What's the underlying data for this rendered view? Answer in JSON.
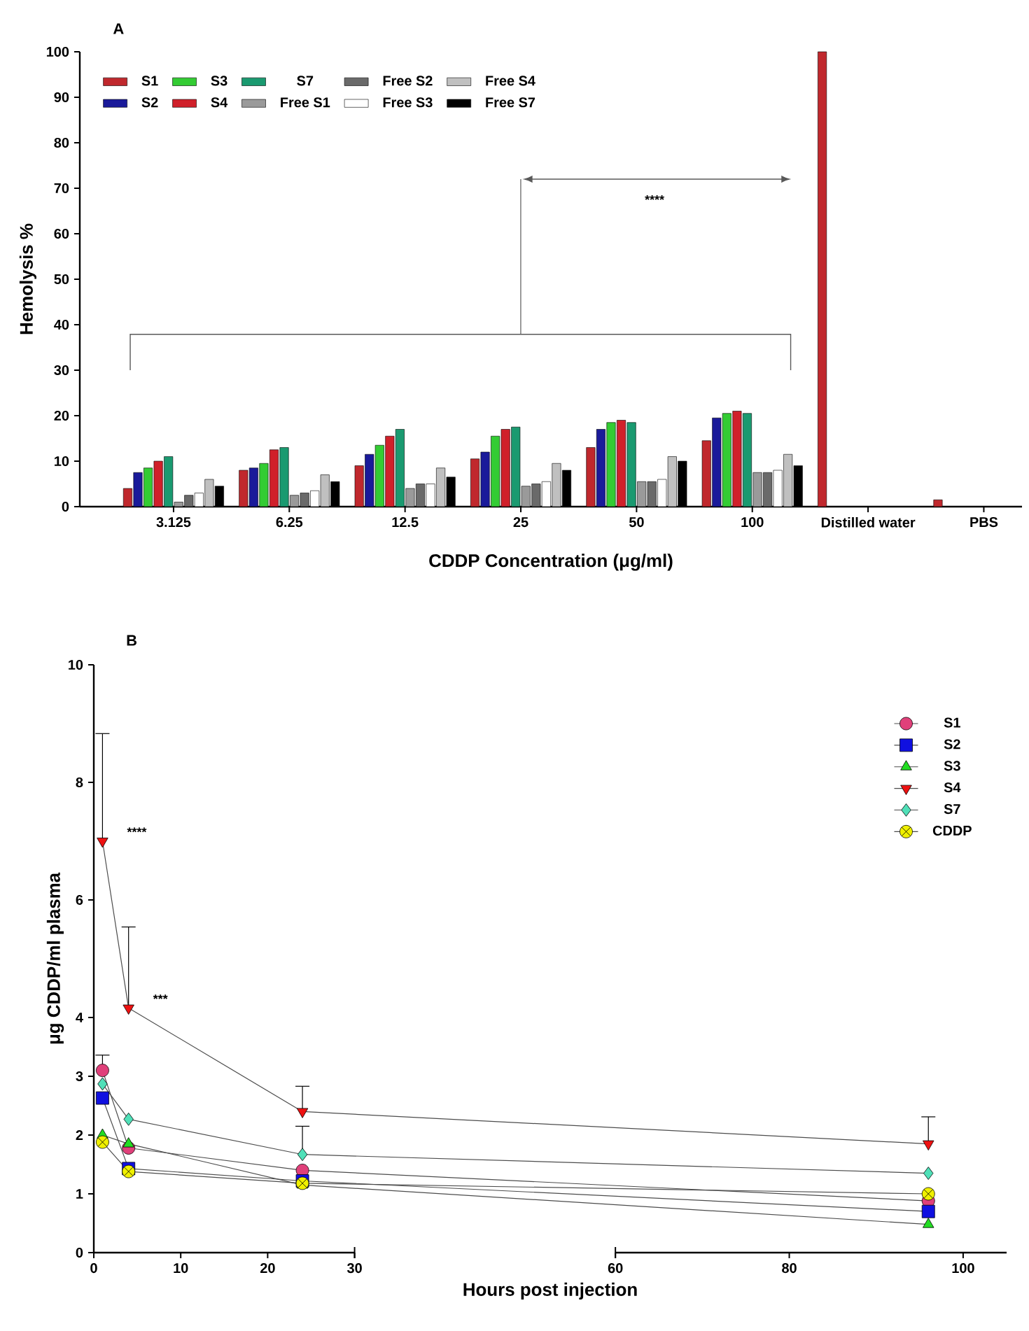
{
  "chart_data": [
    {
      "type": "bar",
      "title": "A",
      "xlabel": "CDDP Concentration (μg/ml)",
      "ylabel": "Hemolysis %",
      "categories": [
        "3.125",
        "6.25",
        "12.5",
        "25",
        "50",
        "100",
        "Distilled water",
        "PBS"
      ],
      "ylim": [
        0,
        100
      ],
      "yticks": [
        0,
        10,
        20,
        30,
        40,
        50,
        60,
        70,
        80,
        90,
        100
      ],
      "legend": "top left",
      "annotations": [
        "****"
      ],
      "series": [
        {
          "name": "S1",
          "color": "#c0282d",
          "values": [
            4,
            8,
            9,
            10.5,
            13,
            14.5,
            100,
            1.5
          ]
        },
        {
          "name": "S2",
          "color": "#1a1a9a",
          "values": [
            7.5,
            8.5,
            11.5,
            12,
            17,
            19.5,
            null,
            null
          ]
        },
        {
          "name": "S3",
          "color": "#33cc33",
          "values": [
            8.5,
            9.5,
            13.5,
            15.5,
            18.5,
            20.5,
            null,
            null
          ]
        },
        {
          "name": "S4",
          "color": "#d0202a",
          "values": [
            10,
            12.5,
            15.5,
            17,
            19,
            21,
            null,
            null
          ]
        },
        {
          "name": "S7",
          "color": "#1a9a70",
          "values": [
            11,
            13,
            17,
            17.5,
            18.5,
            20.5,
            null,
            null
          ]
        },
        {
          "name": "Free S1",
          "color": "#9a9a9a",
          "values": [
            1,
            2.5,
            4,
            4.5,
            5.5,
            7.5,
            null,
            null
          ]
        },
        {
          "name": "Free S2",
          "color": "#6a6a6a",
          "values": [
            2.5,
            3,
            5,
            5,
            5.5,
            7.5,
            null,
            null
          ]
        },
        {
          "name": "Free S3",
          "color": "#ffffff",
          "values": [
            3,
            3.5,
            5,
            5.5,
            6,
            8,
            null,
            null
          ]
        },
        {
          "name": "Free S4",
          "color": "#c0c0c0",
          "values": [
            6,
            7,
            8.5,
            9.5,
            11,
            11.5,
            null,
            null
          ]
        },
        {
          "name": "Free S7",
          "color": "#000000",
          "values": [
            4.5,
            5.5,
            6.5,
            8,
            10,
            9,
            null,
            null
          ]
        }
      ]
    },
    {
      "type": "line",
      "title": "B",
      "xlabel": "Hours post injection",
      "ylabel": "μg CDDP/ml plasma",
      "x": [
        1,
        4,
        24,
        96
      ],
      "xlim": [
        0,
        105
      ],
      "xticks": [
        0,
        10,
        20,
        30,
        60,
        80,
        100
      ],
      "ylim": [
        0,
        10
      ],
      "yticks": [
        0,
        1,
        2,
        3,
        4,
        6,
        8,
        10
      ],
      "legend": "top right",
      "annotations": [
        {
          "text": "****",
          "x": 1,
          "y": 7.0
        },
        {
          "text": "***",
          "x": 4,
          "y": 4.16
        }
      ],
      "series": [
        {
          "name": "S1",
          "color": "#e0407a",
          "marker": "circle",
          "values": [
            3.1,
            1.78,
            1.4,
            0.88
          ],
          "errors": [
            [
              3.1,
              3.36
            ],
            null,
            null,
            null
          ]
        },
        {
          "name": "S2",
          "color": "#1010e0",
          "marker": "square",
          "values": [
            2.63,
            1.43,
            1.22,
            0.7
          ]
        },
        {
          "name": "S3",
          "color": "#22dd22",
          "marker": "triangle",
          "values": [
            2.0,
            1.85,
            1.15,
            0.48
          ]
        },
        {
          "name": "S4",
          "color": "#ee1111",
          "marker": "triangle-down",
          "values": [
            7.0,
            4.16,
            2.4,
            1.85
          ],
          "errors": [
            [
              7.0,
              8.83
            ],
            [
              4.16,
              5.54
            ],
            [
              2.4,
              2.83
            ],
            [
              1.85,
              2.31
            ]
          ]
        },
        {
          "name": "S7",
          "color": "#50e0b8",
          "marker": "diamond",
          "values": [
            2.87,
            2.27,
            1.67,
            1.35
          ],
          "errors": [
            null,
            null,
            [
              1.67,
              2.15
            ],
            null
          ]
        },
        {
          "name": "CDDP",
          "color": "#f0f000",
          "marker": "cross",
          "values": [
            1.88,
            1.38,
            1.18,
            1.0
          ]
        }
      ]
    }
  ]
}
